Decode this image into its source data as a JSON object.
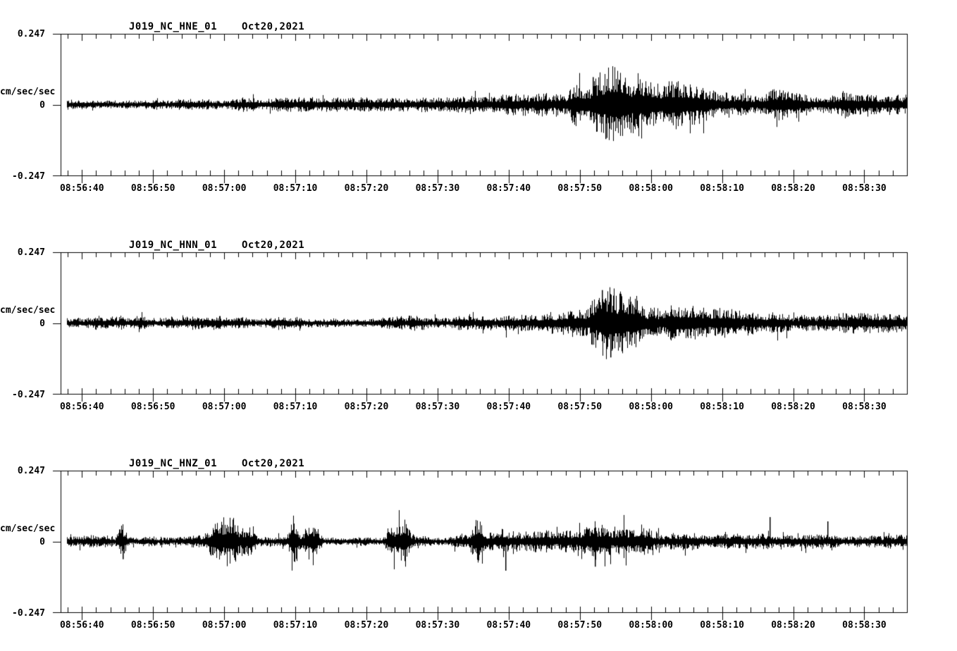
{
  "page": {
    "background_color": "#ffffff",
    "trace_color": "#000000",
    "axis_color": "#000000"
  },
  "chart_data": [
    {
      "type": "line",
      "kind": "seismogram",
      "station_channel": "J019_NC_HNE_01",
      "date": "Oct20,2021",
      "ylabel": "cm/sec/sec",
      "ylim": [
        -0.247,
        0.247
      ],
      "ytick_labels": [
        "0.247",
        "0",
        "-0.247"
      ],
      "x_tick_labels": [
        "08:56:40",
        "08:56:50",
        "08:57:00",
        "08:57:10",
        "08:57:20",
        "08:57:30",
        "08:57:40",
        "08:57:50",
        "08:58:00",
        "08:58:10",
        "08:58:20",
        "08:58:30"
      ],
      "x_major_tick_interval_seconds": 10,
      "x_minor_tick_interval_seconds": 2,
      "trace_start_time": "08:56:37",
      "trace_end_time": "08:58:36",
      "envelope_note": "amplitude envelope in cm/sec/sec vs seconds after trace start",
      "amplitude_envelope": [
        [
          0,
          0.019
        ],
        [
          25,
          0.02
        ],
        [
          45,
          0.019
        ],
        [
          56,
          0.021
        ],
        [
          61,
          0.027
        ],
        [
          64,
          0.033
        ],
        [
          68,
          0.038
        ],
        [
          71,
          0.045
        ],
        [
          73,
          0.072
        ],
        [
          75,
          0.09
        ],
        [
          77,
          0.108
        ],
        [
          79,
          0.098
        ],
        [
          82,
          0.09
        ],
        [
          85,
          0.07
        ],
        [
          88,
          0.058
        ],
        [
          92,
          0.05
        ],
        [
          97,
          0.044
        ],
        [
          103,
          0.04
        ],
        [
          110,
          0.036
        ],
        [
          119,
          0.033
        ]
      ],
      "transient_bursts": [],
      "peak_events": [
        {
          "t": 76.6,
          "amp": -0.12
        },
        {
          "t": 74.8,
          "amp": 0.096
        }
      ],
      "spikiness": 0.02,
      "description": "East component: steady background noise ~±0.02, emergent buildup from ~08:57:38, strongest shaking 08:57:49-08:58:00 peaking near ±0.11 with one -0.12 spike, slowly decaying coda"
    },
    {
      "type": "line",
      "kind": "seismogram",
      "station_channel": "J019_NC_HNN_01",
      "date": "Oct20,2021",
      "ylabel": "cm/sec/sec",
      "ylim": [
        -0.247,
        0.247
      ],
      "ytick_labels": [
        "0.247",
        "0",
        "-0.247"
      ],
      "x_tick_labels": [
        "08:56:40",
        "08:56:50",
        "08:57:00",
        "08:57:10",
        "08:57:20",
        "08:57:30",
        "08:57:40",
        "08:57:50",
        "08:58:00",
        "08:58:10",
        "08:58:20",
        "08:58:30"
      ],
      "x_major_tick_interval_seconds": 10,
      "x_minor_tick_interval_seconds": 2,
      "trace_start_time": "08:56:37",
      "trace_end_time": "08:58:36",
      "envelope_note": "amplitude envelope in cm/sec/sec vs seconds after trace start",
      "amplitude_envelope": [
        [
          0,
          0.019
        ],
        [
          30,
          0.019
        ],
        [
          50,
          0.021
        ],
        [
          58,
          0.025
        ],
        [
          63,
          0.03
        ],
        [
          67,
          0.036
        ],
        [
          70,
          0.04
        ],
        [
          73,
          0.05
        ],
        [
          75,
          0.085
        ],
        [
          76.5,
          0.112
        ],
        [
          78,
          0.108
        ],
        [
          80,
          0.09
        ],
        [
          82,
          0.072
        ],
        [
          85,
          0.058
        ],
        [
          88,
          0.048
        ],
        [
          92,
          0.04
        ],
        [
          97,
          0.035
        ],
        [
          103,
          0.031
        ],
        [
          110,
          0.028
        ],
        [
          119,
          0.026
        ]
      ],
      "transient_bursts": [],
      "peak_events": [
        {
          "t": 77.3,
          "amp": -0.12
        },
        {
          "t": 76.1,
          "amp": 0.115
        }
      ],
      "spikiness": 0.02,
      "description": "North component: steady background noise ~±0.02, gradual buildup from ~08:57:35, compact strong burst 08:57:52-08:57:58 peaking near ±0.12, decaying coda"
    },
    {
      "type": "line",
      "kind": "seismogram",
      "station_channel": "J019_NC_HNZ_01",
      "date": "Oct20,2021",
      "ylabel": "cm/sec/sec",
      "ylim": [
        -0.247,
        0.247
      ],
      "ytick_labels": [
        "0.247",
        "0",
        "-0.247"
      ],
      "x_tick_labels": [
        "08:56:40",
        "08:56:50",
        "08:57:00",
        "08:57:10",
        "08:57:20",
        "08:57:30",
        "08:57:40",
        "08:57:50",
        "08:58:00",
        "08:58:10",
        "08:58:20",
        "08:58:30"
      ],
      "x_major_tick_interval_seconds": 10,
      "x_minor_tick_interval_seconds": 2,
      "trace_start_time": "08:56:37",
      "trace_end_time": "08:58:36",
      "envelope_note": "amplitude envelope in cm/sec/sec vs seconds after trace start",
      "amplitude_envelope": [
        [
          0,
          0.017
        ],
        [
          54,
          0.017
        ],
        [
          57,
          0.028
        ],
        [
          60,
          0.038
        ],
        [
          62,
          0.048
        ],
        [
          64,
          0.038
        ],
        [
          66,
          0.032
        ],
        [
          69,
          0.03
        ],
        [
          72,
          0.04
        ],
        [
          74,
          0.068
        ],
        [
          75,
          0.082
        ],
        [
          76.5,
          0.072
        ],
        [
          78,
          0.055
        ],
        [
          80,
          0.045
        ],
        [
          83,
          0.035
        ],
        [
          86,
          0.028
        ],
        [
          90,
          0.024
        ],
        [
          95,
          0.021
        ],
        [
          100,
          0.02
        ],
        [
          106,
          0.019
        ],
        [
          112,
          0.018
        ],
        [
          119,
          0.017
        ]
      ],
      "transient_bursts": [
        {
          "t": 8.7,
          "amp": 0.062,
          "w": 0.9
        },
        {
          "t": 22.3,
          "amp": 0.048,
          "w": 2.2
        },
        {
          "t": 24.6,
          "amp": 0.06,
          "w": 1.8
        },
        {
          "t": 26.4,
          "amp": 0.046,
          "w": 1.4
        },
        {
          "t": 32.8,
          "amp": 0.068,
          "w": 1.0
        },
        {
          "t": 35.3,
          "amp": 0.056,
          "w": 1.6
        },
        {
          "t": 46.6,
          "amp": 0.058,
          "w": 1.4
        },
        {
          "t": 48.3,
          "amp": 0.066,
          "w": 1.6
        },
        {
          "t": 58.6,
          "amp": 0.055,
          "w": 1.2
        }
      ],
      "peak_events": [
        {
          "t": 8.7,
          "amp": -0.062
        },
        {
          "t": 62.5,
          "amp": -0.102
        },
        {
          "t": 75.1,
          "amp": -0.088
        },
        {
          "t": 99.7,
          "amp": 0.085
        },
        {
          "t": 107.8,
          "amp": 0.07
        }
      ],
      "spikiness": 0.055,
      "description": "Vertical component: spiky background noise with repeated transient bursts (~08:56:46, 08:56:59-08:57:04, 08:57:10-08:57:13, 08:57:24-08:57:26), sharp spike to -0.10 near 08:57:40, main burst ~08:57:50-08:57:55 near ±0.09, isolated spikes at ~08:58:17 and ~08:58:25"
    }
  ]
}
